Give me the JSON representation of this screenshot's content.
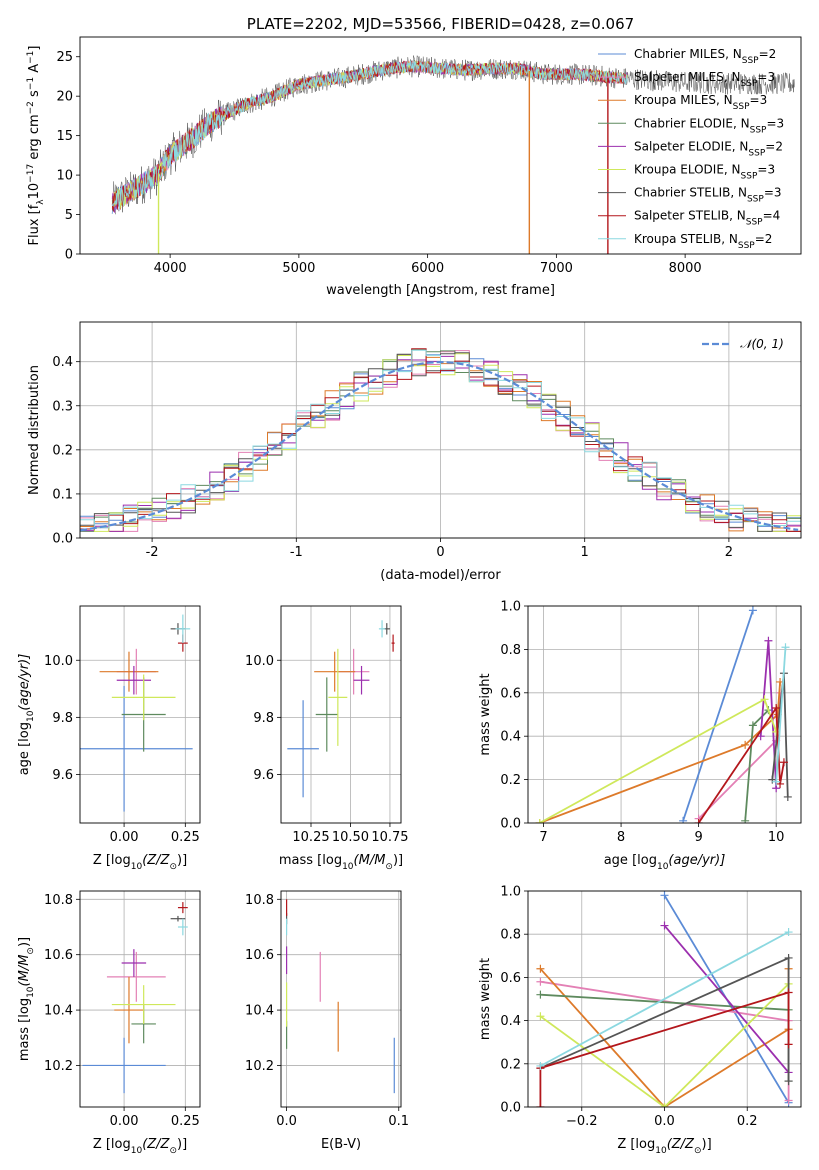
{
  "figure": {
    "title": "PLATE=2202, MJD=53566, FIBERID=0428, z=0.067",
    "models": [
      {
        "label": "Chabrier MILES, N",
        "sub": "SSP",
        "eq": "=2",
        "color": "#5b8bd6"
      },
      {
        "label": "Salpeter MILES, N",
        "sub": "SSP",
        "eq": "=3",
        "color": "#e380b5"
      },
      {
        "label": "Kroupa MILES, N",
        "sub": "SSP",
        "eq": "=3",
        "color": "#dd7a2a"
      },
      {
        "label": "Chabrier ELODIE, N",
        "sub": "SSP",
        "eq": "=3",
        "color": "#5e8a5e"
      },
      {
        "label": "Salpeter ELODIE, N",
        "sub": "SSP",
        "eq": "=2",
        "color": "#9b2fae"
      },
      {
        "label": "Kroupa ELODIE, N",
        "sub": "SSP",
        "eq": "=3",
        "color": "#cfe85b"
      },
      {
        "label": "Chabrier STELIB, N",
        "sub": "SSP",
        "eq": "=3",
        "color": "#555555"
      },
      {
        "label": "Salpeter STELIB, N",
        "sub": "SSP",
        "eq": "=4",
        "color": "#b3171c"
      },
      {
        "label": "Kroupa STELIB, N",
        "sub": "SSP",
        "eq": "=2",
        "color": "#8bd8e0"
      }
    ]
  },
  "chart_data": [
    {
      "id": "spectrum",
      "type": "line",
      "ylabel": "Flux [f",
      "ylabel_parts": [
        "Flux [f",
        "λ",
        "10",
        "−17",
        " erg cm",
        "−2",
        " s",
        "−1",
        " A",
        "−1",
        "]"
      ],
      "xlabel": "wavelength [Angstrom, rest frame]",
      "xlim": [
        3300,
        8900
      ],
      "ylim": [
        0,
        27.5
      ],
      "xticks": [
        4000,
        5000,
        6000,
        7000,
        8000
      ],
      "yticks": [
        0,
        5,
        10,
        15,
        20,
        25
      ],
      "data_range": [
        3550,
        8850
      ],
      "continuum": {
        "x": [
          3550,
          3700,
          3900,
          4000,
          4200,
          4300,
          4400,
          4600,
          4800,
          5000,
          5200,
          5400,
          5700,
          5900,
          6100,
          6300,
          6500,
          6700,
          6900,
          7100,
          7300,
          7500,
          7700,
          7900,
          8100,
          8300,
          8500,
          8850
        ],
        "y": [
          6.5,
          8.0,
          10.0,
          12.5,
          15.0,
          16.5,
          17.5,
          19.0,
          20.0,
          21.5,
          22.0,
          22.5,
          23.5,
          23.8,
          23.5,
          23.3,
          23.5,
          23.5,
          22.8,
          22.8,
          22.6,
          22.3,
          22.1,
          21.8,
          21.7,
          21.6,
          21.6,
          21.6
        ]
      },
      "dips": [
        {
          "x": 3910,
          "y": 0
        },
        {
          "x": 6790,
          "y": 0
        },
        {
          "x": 7400,
          "y": 0
        }
      ]
    },
    {
      "id": "residuals",
      "type": "histogram",
      "ylabel": "Normed distribution",
      "xlabel": "(data-model)/error",
      "xlim": [
        -2.5,
        2.5
      ],
      "ylim": [
        0,
        0.49
      ],
      "xticks": [
        -2,
        -1,
        0,
        1,
        2
      ],
      "yticks": [
        0.0,
        0.1,
        0.2,
        0.3,
        0.4
      ],
      "bin_width": 0.1,
      "legend": "𝒩(0, 1)",
      "gauss_color": "#5b8bd6"
    },
    {
      "id": "age_Z",
      "type": "scatter",
      "xlabel": "Z [log",
      "xlabel_parts": [
        "Z [log",
        "10",
        "(Z/Z",
        "⊙",
        ")]"
      ],
      "ylabel_parts": [
        "age  [log",
        "10",
        "(age/yr)]"
      ],
      "xlim": [
        -0.18,
        0.31
      ],
      "ylim": [
        9.43,
        10.19
      ],
      "xticks": [
        0.0,
        0.25
      ],
      "xtick_labels": [
        "0.00",
        "0.25"
      ],
      "yticks": [
        9.6,
        9.8,
        10.0
      ],
      "yticks_labels": [
        "9.6",
        "9.8",
        "10.0"
      ],
      "points": [
        {
          "x": 0.0,
          "y": 9.69,
          "ex": 0.28,
          "ey": 0.22
        },
        {
          "x": 0.05,
          "y": 9.96,
          "ex": 0.08,
          "ey": 0.08
        },
        {
          "x": 0.02,
          "y": 9.96,
          "ex": 0.12,
          "ey": 0.07
        },
        {
          "x": 0.08,
          "y": 9.81,
          "ex": 0.09,
          "ey": 0.13
        },
        {
          "x": 0.04,
          "y": 9.93,
          "ex": 0.07,
          "ey": 0.05
        },
        {
          "x": 0.08,
          "y": 9.87,
          "ex": 0.13,
          "ey": 0.08
        },
        {
          "x": 0.22,
          "y": 10.11,
          "ex": 0.03,
          "ey": 0.02
        },
        {
          "x": 0.24,
          "y": 10.06,
          "ex": 0.02,
          "ey": 0.03
        },
        {
          "x": 0.24,
          "y": 10.11,
          "ex": 0.03,
          "ey": 0.05
        }
      ]
    },
    {
      "id": "age_mass",
      "type": "scatter",
      "xlabel_parts": [
        "mass [log",
        "10",
        "(M/M",
        "⊙",
        ")]"
      ],
      "xlim": [
        10.06,
        10.82
      ],
      "ylim": [
        9.43,
        10.19
      ],
      "xticks": [
        10.25,
        10.5,
        10.75
      ],
      "xtick_labels": [
        "10.25",
        "10.50",
        "10.75"
      ],
      "yticks": [
        9.6,
        9.8,
        10.0
      ],
      "yticks_labels": [
        "9.6",
        "9.8",
        "10.0"
      ],
      "points": [
        {
          "x": 10.2,
          "y": 9.69,
          "ex": 0.1,
          "ey": 0.17
        },
        {
          "x": 10.52,
          "y": 9.96,
          "ex": 0.1,
          "ey": 0.08
        },
        {
          "x": 10.4,
          "y": 9.96,
          "ex": 0.13,
          "ey": 0.07
        },
        {
          "x": 10.35,
          "y": 9.81,
          "ex": 0.07,
          "ey": 0.13
        },
        {
          "x": 10.57,
          "y": 9.93,
          "ex": 0.05,
          "ey": 0.05
        },
        {
          "x": 10.42,
          "y": 9.87,
          "ex": 0.06,
          "ey": 0.17
        },
        {
          "x": 10.73,
          "y": 10.11,
          "ex": 0.02,
          "ey": 0.02
        },
        {
          "x": 10.77,
          "y": 10.06,
          "ex": 0.01,
          "ey": 0.03
        },
        {
          "x": 10.7,
          "y": 10.11,
          "ex": 0.02,
          "ey": 0.03
        }
      ]
    },
    {
      "id": "mw_age",
      "type": "line",
      "ylabel": "mass weight",
      "xlabel_parts": [
        "age  [log",
        "10",
        "(age/yr)]"
      ],
      "xlim": [
        6.8,
        10.32
      ],
      "ylim": [
        0,
        1.0
      ],
      "xticks": [
        7,
        8,
        9,
        10
      ],
      "yticks": [
        0.0,
        0.2,
        0.4,
        0.6,
        0.8,
        1.0
      ],
      "yticks_labels": [
        "0.0",
        "0.2",
        "0.4",
        "0.6",
        "0.8",
        "1.0"
      ],
      "series": [
        {
          "x": [
            8.8,
            9.7
          ],
          "y": [
            0.01,
            0.98
          ]
        },
        {
          "x": [
            9.0,
            10.0,
            10.05
          ],
          "y": [
            0.02,
            0.38,
            0.6
          ]
        },
        {
          "x": [
            6.95,
            9.6,
            10.02,
            10.05
          ],
          "y": [
            0.0,
            0.36,
            0.5,
            0.65
          ]
        },
        {
          "x": [
            9.6,
            9.7,
            9.9
          ],
          "y": [
            0.01,
            0.45,
            0.52
          ]
        },
        {
          "x": [
            9.8,
            9.9,
            10.0
          ],
          "y": [
            0.4,
            0.84,
            0.16
          ]
        },
        {
          "x": [
            6.95,
            9.85,
            10.0
          ],
          "y": [
            0.0,
            0.57,
            0.42
          ]
        },
        {
          "x": [
            9.95,
            10.1,
            10.15
          ],
          "y": [
            0.2,
            0.69,
            0.12
          ]
        },
        {
          "x": [
            9.0,
            10.0,
            10.05,
            10.1
          ],
          "y": [
            0.0,
            0.53,
            0.18,
            0.28
          ]
        },
        {
          "x": [
            10.0,
            10.12
          ],
          "y": [
            0.19,
            0.81
          ]
        }
      ]
    },
    {
      "id": "mass_Z",
      "type": "scatter",
      "xlabel_parts": [
        "Z [log",
        "10",
        "(Z/Z",
        "⊙",
        ")]"
      ],
      "ylabel_parts": [
        "mass [log",
        "10",
        "(M/M",
        "⊙",
        ")]"
      ],
      "xlim": [
        -0.18,
        0.31
      ],
      "ylim": [
        10.05,
        10.83
      ],
      "xticks": [
        0.0,
        0.25
      ],
      "xtick_labels": [
        "0.00",
        "0.25"
      ],
      "yticks": [
        10.2,
        10.4,
        10.6,
        10.8
      ],
      "yticks_labels": [
        "10.2",
        "10.4",
        "10.6",
        "10.8"
      ],
      "points": [
        {
          "x": 0.0,
          "y": 10.2,
          "ex": 0.17,
          "ey": 0.1
        },
        {
          "x": 0.05,
          "y": 10.52,
          "ex": 0.12,
          "ey": 0.09
        },
        {
          "x": 0.02,
          "y": 10.4,
          "ex": 0.06,
          "ey": 0.12
        },
        {
          "x": 0.08,
          "y": 10.35,
          "ex": 0.05,
          "ey": 0.07
        },
        {
          "x": 0.04,
          "y": 10.57,
          "ex": 0.05,
          "ey": 0.05
        },
        {
          "x": 0.08,
          "y": 10.42,
          "ex": 0.13,
          "ey": 0.07
        },
        {
          "x": 0.22,
          "y": 10.73,
          "ex": 0.03,
          "ey": 0.01
        },
        {
          "x": 0.24,
          "y": 10.77,
          "ex": 0.02,
          "ey": 0.02
        },
        {
          "x": 0.24,
          "y": 10.7,
          "ex": 0.02,
          "ey": 0.03
        }
      ]
    },
    {
      "id": "mass_ebv",
      "type": "scatter",
      "xlabel": "E(B-V)",
      "xlim": [
        -0.005,
        0.102
      ],
      "ylim": [
        10.05,
        10.83
      ],
      "xticks": [
        0.0,
        0.1
      ],
      "xtick_labels": [
        "0.0",
        "0.1"
      ],
      "yticks": [
        10.2,
        10.4,
        10.6,
        10.8
      ],
      "yticks_labels": [
        "10.2",
        "10.4",
        "10.6",
        "10.8"
      ],
      "points": [
        {
          "x": 0.096,
          "y": 10.2,
          "ex": 0.0,
          "ey": 0.1
        },
        {
          "x": 0.03,
          "y": 10.52,
          "ex": 0.0,
          "ey": 0.09
        },
        {
          "x": 0.046,
          "y": 10.34,
          "ex": 0.0,
          "ey": 0.09
        },
        {
          "x": 0.0,
          "y": 10.31,
          "ex": 0.0,
          "ey": 0.05
        },
        {
          "x": 0.0,
          "y": 10.58,
          "ex": 0.0,
          "ey": 0.05
        },
        {
          "x": 0.0,
          "y": 10.42,
          "ex": 0.0,
          "ey": 0.08
        },
        {
          "x": 0.0,
          "y": 10.73,
          "ex": 0.0,
          "ey": 0.02
        },
        {
          "x": 0.0,
          "y": 10.77,
          "ex": 0.0,
          "ey": 0.03
        },
        {
          "x": 0.0,
          "y": 10.7,
          "ex": 0.0,
          "ey": 0.03
        }
      ]
    },
    {
      "id": "mw_Z",
      "type": "line",
      "ylabel": "mass weight",
      "xlabel_parts": [
        "Z [log",
        "10",
        "(Z/Z",
        "⊙",
        ")]"
      ],
      "xlim": [
        -0.33,
        0.33
      ],
      "ylim": [
        0,
        1.0
      ],
      "xticks": [
        -0.2,
        0.0,
        0.2
      ],
      "xtick_labels": [
        "−0.2",
        "0.0",
        "0.2"
      ],
      "yticks": [
        0.0,
        0.2,
        0.4,
        0.6,
        0.8,
        1.0
      ],
      "yticks_labels": [
        "0.0",
        "0.2",
        "0.4",
        "0.6",
        "0.8",
        "1.0"
      ],
      "series": [
        {
          "x": [
            0.0,
            0.3
          ],
          "y": [
            0.98,
            0.02
          ]
        },
        {
          "x": [
            -0.3,
            0.3,
            0.3
          ],
          "y": [
            0.58,
            0.4,
            0.03
          ]
        },
        {
          "x": [
            -0.3,
            0.0,
            0.3,
            0.3
          ],
          "y": [
            0.64,
            0.0,
            0.36,
            0.64
          ]
        },
        {
          "x": [
            -0.3,
            0.3,
            0.3
          ],
          "y": [
            0.52,
            0.45,
            0.12
          ]
        },
        {
          "x": [
            0.0,
            0.3
          ],
          "y": [
            0.84,
            0.16
          ]
        },
        {
          "x": [
            -0.3,
            0.0,
            0.3
          ],
          "y": [
            0.42,
            0.0,
            0.57
          ]
        },
        {
          "x": [
            -0.3,
            0.3,
            0.3
          ],
          "y": [
            0.18,
            0.69,
            0.12
          ]
        },
        {
          "x": [
            -0.3,
            -0.3,
            0.3,
            0.3
          ],
          "y": [
            0.0,
            0.18,
            0.53,
            0.29
          ]
        },
        {
          "x": [
            -0.3,
            0.3
          ],
          "y": [
            0.19,
            0.81
          ]
        }
      ]
    }
  ]
}
